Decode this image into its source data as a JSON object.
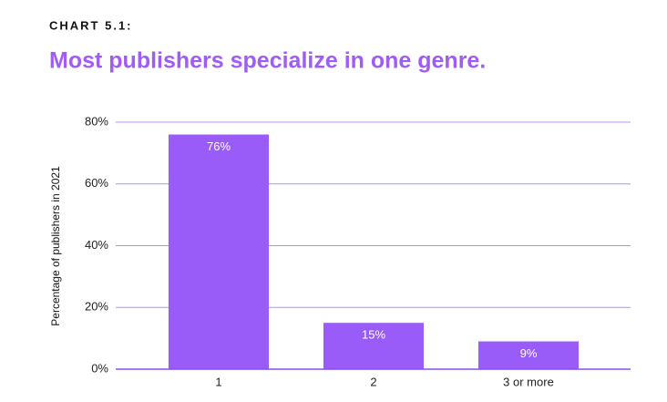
{
  "chart_data": {
    "type": "bar",
    "label": "CHART 5.1:",
    "title": "Most publishers specialize in one genre.",
    "ylabel": "Percentage of publishers in 2021",
    "categories": [
      "1",
      "2",
      "3 or more"
    ],
    "values": [
      76,
      15,
      9
    ],
    "value_labels": [
      "76%",
      "15%",
      "9%"
    ],
    "color": "#9a5cf8",
    "ylim": [
      0,
      80
    ],
    "yticks": [
      {
        "value": 0,
        "label": "0%"
      },
      {
        "value": 20,
        "label": "20%"
      },
      {
        "value": 40,
        "label": "40%"
      },
      {
        "value": 60,
        "label": "60%"
      },
      {
        "value": 80,
        "label": "80%"
      }
    ],
    "grid": true
  }
}
